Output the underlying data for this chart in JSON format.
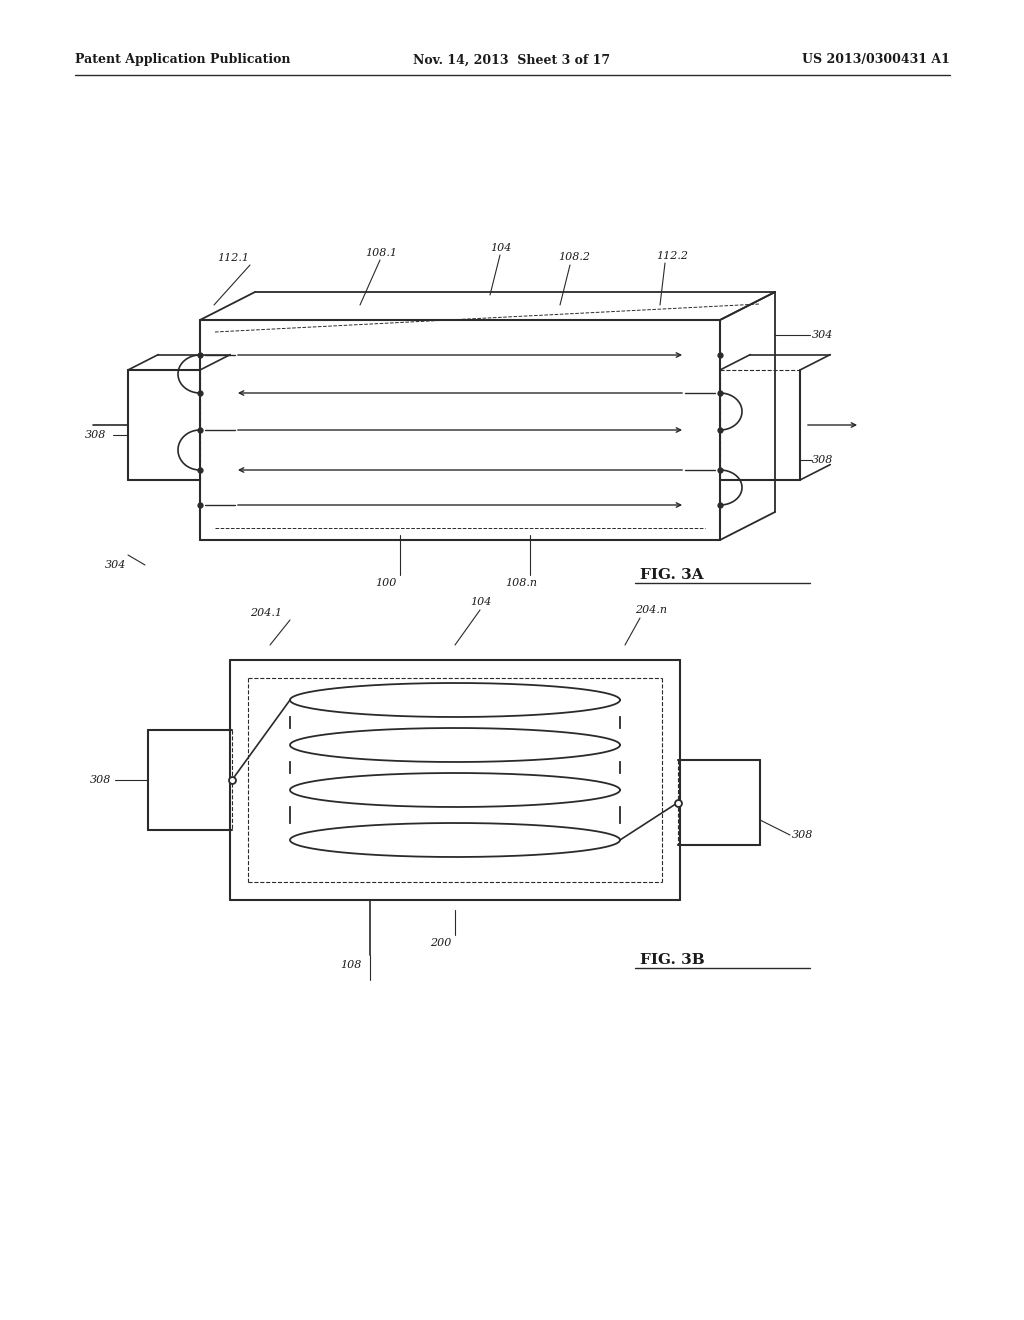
{
  "bg_color": "#ffffff",
  "text_color": "#1a1a1a",
  "line_color": "#2a2a2a",
  "header_left": "Patent Application Publication",
  "header_mid": "Nov. 14, 2013  Sheet 3 of 17",
  "header_right": "US 2013/0300431 A1",
  "fig3a_label": "FIG. 3A",
  "fig3b_label": "FIG. 3B"
}
